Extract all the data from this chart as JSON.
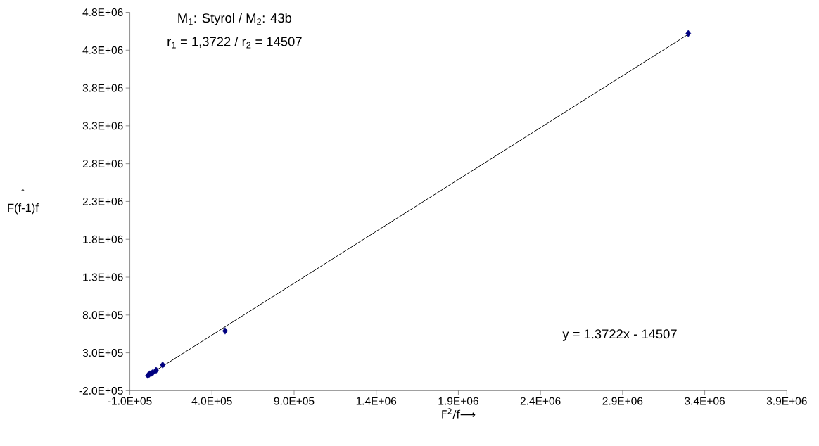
{
  "chart_data": {
    "type": "scatter",
    "xlabel": "F$^{2}$/f⟶",
    "ylabel": "↑ F(f-1)f",
    "annotations": [
      "M$_{1}$: Styrol / M$_{2}$: 43b",
      "r$_{1}$ = 1,3722 / r$_{2}$ = 14507",
      "y = 1.3722x - 14507"
    ],
    "series": [
      {
        "type": "scatter",
        "color": "#000080",
        "marker": "diamond",
        "x": [
          10000,
          20000,
          30000,
          40000,
          60000,
          100000,
          480000,
          3300000
        ],
        "values": [
          0,
          20000,
          30000,
          40000,
          70000,
          140000,
          590000,
          4520000
        ]
      },
      {
        "type": "line",
        "color": "#000000",
        "marker": "none",
        "line_style": "solid",
        "x": [
          10000,
          3300000
        ],
        "values": [
          0,
          4510000
        ]
      }
    ],
    "xlim": [
      -100000,
      3900000
    ],
    "ylim": [
      -200000,
      4800000
    ],
    "xticks": [
      {
        "value": -100000,
        "label": "-1.0E+05"
      },
      {
        "value": 400000,
        "label": "4.0E+05"
      },
      {
        "value": 900000,
        "label": "9.0E+05"
      },
      {
        "value": 1400000,
        "label": "1.4E+06"
      },
      {
        "value": 1900000,
        "label": "1.9E+06"
      },
      {
        "value": 2400000,
        "label": "2.4E+06"
      },
      {
        "value": 2900000,
        "label": "2.9E+06"
      },
      {
        "value": 3400000,
        "label": "3.4E+06"
      },
      {
        "value": 3900000,
        "label": "3.9E+06"
      }
    ],
    "yticks": [
      {
        "value": -200000,
        "label": "-2.0E+05"
      },
      {
        "value": 300000,
        "label": "3.0E+05"
      },
      {
        "value": 800000,
        "label": "8.0E+05"
      },
      {
        "value": 1300000,
        "label": "1.3E+06"
      },
      {
        "value": 1800000,
        "label": "1.8E+06"
      },
      {
        "value": 2300000,
        "label": "2.3E+06"
      },
      {
        "value": 2800000,
        "label": "2.8E+06"
      },
      {
        "value": 3300000,
        "label": "3.3E+06"
      },
      {
        "value": 3800000,
        "label": "3.8E+06"
      },
      {
        "value": 4300000,
        "label": "4.3E+06"
      },
      {
        "value": 4800000,
        "label": "4.8E+06"
      }
    ],
    "grid": false
  }
}
